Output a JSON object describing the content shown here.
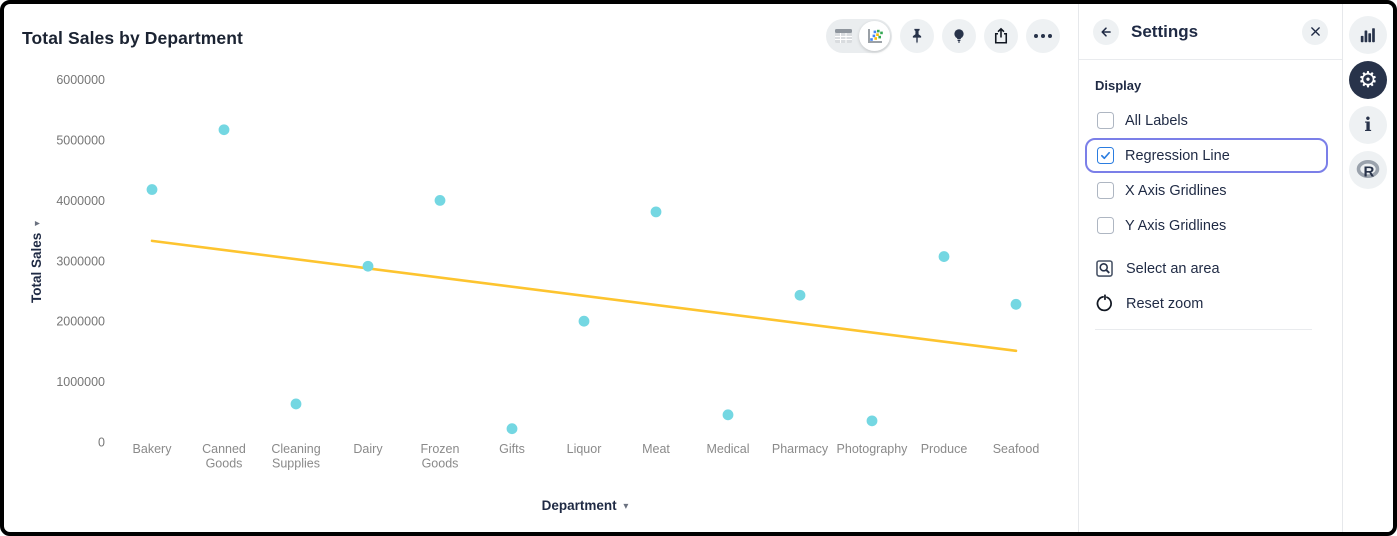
{
  "chart": {
    "title": "Total Sales by Department"
  },
  "chart_data": {
    "type": "scatter",
    "title": "Total Sales by Department",
    "xlabel": "Department",
    "ylabel": "Total Sales",
    "categories": [
      "Bakery",
      "Canned Goods",
      "Cleaning Supplies",
      "Dairy",
      "Frozen Goods",
      "Gifts",
      "Liquor",
      "Meat",
      "Medical",
      "Pharmacy",
      "Photography",
      "Produce",
      "Seafood"
    ],
    "values": [
      4180000,
      5170000,
      630000,
      2910000,
      4000000,
      220000,
      2000000,
      3810000,
      450000,
      2430000,
      350000,
      3070000,
      2280000
    ],
    "ylim": [
      0,
      6000000
    ],
    "y_ticks": [
      0,
      1000000,
      2000000,
      3000000,
      4000000,
      5000000,
      6000000
    ],
    "grid": false,
    "legend_position": "none",
    "regression_line": {
      "start_value": 3330000,
      "end_value": 1510000
    },
    "point_color": "#74d7e2",
    "regression_color": "#fdc42f",
    "tick_color": "#767676",
    "category_color": "#8a8a8a",
    "axis_title_color": "#1f2a44"
  },
  "toolbar": {
    "view_toggle": {
      "selected": "chart-view",
      "options": [
        "table-view",
        "chart-view"
      ]
    },
    "buttons": [
      "pin",
      "insights",
      "export",
      "more"
    ]
  },
  "settings_panel": {
    "title": "Settings",
    "section_label": "Display",
    "display_options": [
      {
        "label": "All Labels",
        "checked": false,
        "focused": false
      },
      {
        "label": "Regression Line",
        "checked": true,
        "focused": true
      },
      {
        "label": "X Axis Gridlines",
        "checked": false,
        "focused": false
      },
      {
        "label": "Y Axis Gridlines",
        "checked": false,
        "focused": false
      }
    ],
    "actions": [
      {
        "label": "Select an area"
      },
      {
        "label": "Reset zoom"
      }
    ]
  },
  "right_rail": {
    "items": [
      "chart-type",
      "settings",
      "info",
      "r-logo"
    ],
    "active": "settings"
  },
  "colors": {
    "accent_blue": "#2b7de0",
    "focus_ring": "#7b7fe8",
    "dark_navy": "#28334a"
  }
}
